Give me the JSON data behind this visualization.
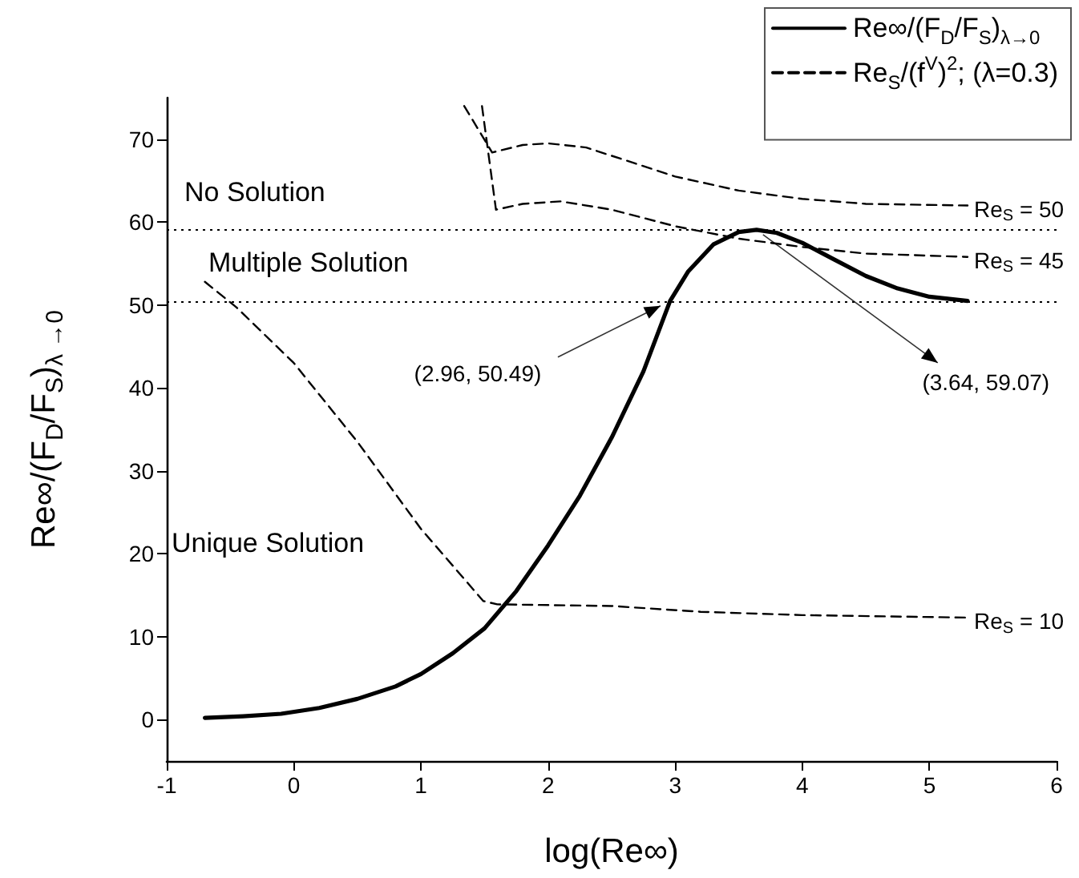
{
  "chart_data": {
    "type": "line",
    "xlabel": "log(Re∞)",
    "ylabel": "Re∞/(F$_{D}$/F$_{S}$)$_{λ →0}$",
    "xlim": [
      -1,
      6
    ],
    "xticks": [
      -1,
      0,
      1,
      2,
      3,
      4,
      5,
      6
    ],
    "ylim": [
      -5,
      75
    ],
    "yticks": [
      0,
      10,
      20,
      30,
      40,
      50,
      60,
      70
    ],
    "grid": false,
    "legend": "top right",
    "marker": "none",
    "series": [
      {
        "name": "Re∞/(F$_{D}$/F$_{S}$)$_{λ→0}$",
        "color": "#000000",
        "line_style": "solid",
        "x": [
          -0.7,
          -0.4,
          -0.1,
          0.2,
          0.5,
          0.8,
          1,
          1.25,
          1.5,
          1.75,
          2,
          2.25,
          2.5,
          2.75,
          2.96,
          3.1,
          3.3,
          3.5,
          3.64,
          3.8,
          4,
          4.25,
          4.5,
          4.75,
          5,
          5.3
        ],
        "values": [
          0.2,
          0.4,
          0.7,
          1.4,
          2.5,
          4,
          5.5,
          8,
          11,
          15.5,
          21,
          27,
          34,
          42,
          50.49,
          54,
          57.3,
          58.8,
          59.07,
          58.7,
          57.5,
          55.5,
          53.5,
          52,
          51,
          50.5
        ]
      },
      {
        "name": "Re$_{S}$/(f$^{V}$)$^{2}$; (λ=0.3)",
        "color": "#000000",
        "line_style": "dashed",
        "x": [
          1.34,
          1.56,
          1.8,
          2.0,
          2.3,
          2.7,
          3.0,
          3.5,
          4,
          4.5,
          5.3,
          null,
          1.48,
          1.59,
          1.8,
          2.1,
          2.5,
          3.0,
          3.5,
          4,
          4.5,
          5.3,
          null,
          -0.7,
          -0.45,
          0,
          0.5,
          1,
          1.49,
          1.6,
          2.5,
          3.2,
          4,
          5.3
        ],
        "values": [
          74,
          68.4,
          69.3,
          69.5,
          69,
          67,
          65.5,
          63.8,
          62.8,
          62.2,
          62,
          null,
          74,
          61.5,
          62.2,
          62.5,
          61.5,
          59.5,
          58,
          57,
          56.2,
          55.8,
          null,
          52.8,
          49.7,
          43,
          33.5,
          23,
          14.3,
          13.9,
          13.7,
          13,
          12.6,
          12.3
        ]
      }
    ],
    "ref_lines": [
      {
        "axis": "y",
        "value": 59.07,
        "line_style": "dotted",
        "color": "#000000"
      },
      {
        "axis": "y",
        "value": 50.49,
        "line_style": "dotted",
        "color": "#000000"
      }
    ],
    "annotations": [
      "No Solution",
      "Multiple Solution",
      "Unique Solution",
      {
        "text": "(2.96, 50.49)",
        "x": 2.96,
        "y": 50.49
      },
      {
        "text": "(3.64, 59.07)",
        "x": 3.64,
        "y": 59.07
      },
      {
        "text": "Re$_{S}$ = 50",
        "x": 5.3,
        "y": 62
      },
      {
        "text": "Re$_{S}$ = 45",
        "x": 5.3,
        "y": 55.8
      },
      {
        "text": "Re$_{S}$ = 10",
        "x": 5.3,
        "y": 12.3
      }
    ]
  }
}
